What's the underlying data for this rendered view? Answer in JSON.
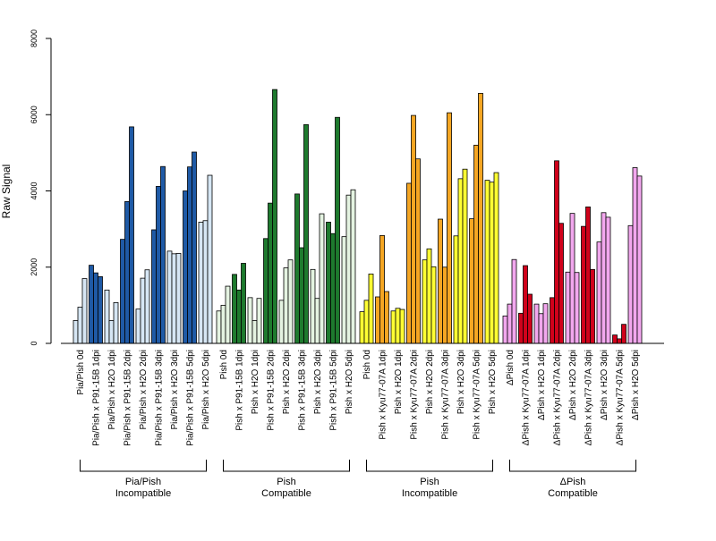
{
  "chart_data": {
    "type": "bar",
    "ylabel": "Raw Signal",
    "ylim": [
      0,
      8000
    ],
    "yticks": [
      0,
      2000,
      4000,
      6000,
      8000
    ],
    "groups": [
      {
        "name_line1": "Pia/Pish",
        "name_line2": "Incompatible",
        "categories": [
          {
            "label": "Pia/Pish 0d",
            "color": "#d6e6f4",
            "values": [
              600,
              950,
              1700
            ]
          },
          {
            "label": "Pia/Pish x P91-15B 1dpi",
            "color": "#1f5aa6",
            "values": [
              2050,
              1850,
              1750
            ]
          },
          {
            "label": "Pia/Pish x H2O 1dpi",
            "color": "#d6e6f4",
            "values": [
              1400,
              600,
              1070
            ]
          },
          {
            "label": "Pia/Pish x P91-15B 2dpi",
            "color": "#1f5aa6",
            "values": [
              2730,
              3720,
              5680
            ]
          },
          {
            "label": "Pia/Pish x H2O 2dpi",
            "color": "#d6e6f4",
            "values": [
              900,
              1710,
              1930
            ]
          },
          {
            "label": "Pia/Pish x P91-15B 3dpi",
            "color": "#1f5aa6",
            "values": [
              2980,
              4120,
              4640
            ]
          },
          {
            "label": "Pia/Pish x H2O 3dpi",
            "color": "#d6e6f4",
            "values": [
              2420,
              2350,
              2360
            ]
          },
          {
            "label": "Pia/Pish x P91-15B 5dpi",
            "color": "#1f5aa6",
            "values": [
              4000,
              4630,
              5020
            ]
          },
          {
            "label": "Pia/Pish x H2O 5dpi",
            "color": "#d6e6f4",
            "values": [
              3180,
              3220,
              4410
            ]
          }
        ]
      },
      {
        "name_line1": "Pish",
        "name_line2": "Compatible",
        "categories": [
          {
            "label": "Pish 0d",
            "color": "#e4f3e1",
            "values": [
              850,
              1000,
              1500
            ]
          },
          {
            "label": "Pish x P91-15B 1dpi",
            "color": "#1e7a2e",
            "values": [
              1810,
              1400,
              2100
            ]
          },
          {
            "label": "Pish x H2O 1dpi",
            "color": "#e4f3e1",
            "values": [
              1200,
              600,
              1180
            ]
          },
          {
            "label": "Pish x P91-15B 2dpi",
            "color": "#1e7a2e",
            "values": [
              2750,
              3680,
              6660
            ]
          },
          {
            "label": "Pish x H2O 2dpi",
            "color": "#e4f3e1",
            "values": [
              1130,
              1980,
              2190
            ]
          },
          {
            "label": "Pish x P91-15B 3dpi",
            "color": "#1e7a2e",
            "values": [
              3920,
              2510,
              5740
            ]
          },
          {
            "label": "Pish x H2O 3dpi",
            "color": "#e4f3e1",
            "values": [
              1940,
              1180,
              3400
            ]
          },
          {
            "label": "Pish x P91-15B 5dpi",
            "color": "#1e7a2e",
            "values": [
              3180,
              2880,
              5930
            ]
          },
          {
            "label": "Pish x H2O 5dpi",
            "color": "#e4f3e1",
            "values": [
              2800,
              3890,
              4030
            ]
          }
        ]
      },
      {
        "name_line1": "Pish",
        "name_line2": "Incompatible",
        "categories": [
          {
            "label": "Pish 0d",
            "color": "#ffff33",
            "values": [
              830,
              1130,
              1820
            ]
          },
          {
            "label": "Pish x Kyu77-07A 1dpi",
            "color": "#f5a623",
            "values": [
              1220,
              2830,
              1360
            ]
          },
          {
            "label": "Pish x H2O 1dpi",
            "color": "#ffff33",
            "values": [
              850,
              920,
              890
            ]
          },
          {
            "label": "Pish x Kyu77-07A 2dpi",
            "color": "#f5a623",
            "values": [
              4200,
              5980,
              4840
            ]
          },
          {
            "label": "Pish x H2O 2dpi",
            "color": "#ffff33",
            "values": [
              2190,
              2480,
              2010
            ]
          },
          {
            "label": "Pish x Kyu77-07A 3dpi",
            "color": "#f5a623",
            "values": [
              3260,
              2000,
              6050
            ]
          },
          {
            "label": "Pish x H2O 3dpi",
            "color": "#ffff33",
            "values": [
              2820,
              4320,
              4570
            ]
          },
          {
            "label": "Pish x Kyu77-07A 5dpi",
            "color": "#f5a623",
            "values": [
              3270,
              5200,
              6560
            ]
          },
          {
            "label": "Pish x H2O 5dpi",
            "color": "#ffff33",
            "values": [
              4280,
              4230,
              4480
            ]
          }
        ]
      },
      {
        "name_line1": "ΔPish",
        "name_line2": "Compatible",
        "categories": [
          {
            "label": "ΔPish 0d",
            "color": "#f2a7ee",
            "values": [
              720,
              1030,
              2200
            ]
          },
          {
            "label": "ΔPish x Kyu77-07A 1dpi",
            "color": "#d0021b",
            "values": [
              790,
              2040,
              1290
            ]
          },
          {
            "label": "ΔPish x H2O 1dpi",
            "color": "#f2a7ee",
            "values": [
              1030,
              780,
              1040
            ]
          },
          {
            "label": "ΔPish x Kyu77-07A 2dpi",
            "color": "#d0021b",
            "values": [
              1200,
              4790,
              3150
            ]
          },
          {
            "label": "ΔPish x H2O 2dpi",
            "color": "#f2a7ee",
            "values": [
              1870,
              3410,
              1860
            ]
          },
          {
            "label": "ΔPish x Kyu77-07A 3dpi",
            "color": "#d0021b",
            "values": [
              3070,
              3580,
              1940
            ]
          },
          {
            "label": "ΔPish x H2O 3dpi",
            "color": "#f2a7ee",
            "values": [
              2660,
              3430,
              3310
            ]
          },
          {
            "label": "ΔPish x Kyu77-07A 5dpi",
            "color": "#d0021b",
            "values": [
              220,
              120,
              500
            ]
          },
          {
            "label": "ΔPish x H2O 5dpi",
            "color": "#f2a7ee",
            "values": [
              3090,
              4610,
              4390
            ]
          }
        ]
      }
    ]
  }
}
